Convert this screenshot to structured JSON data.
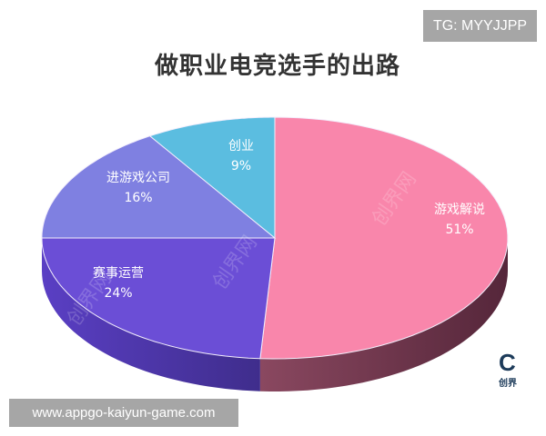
{
  "badge": "TG: MYYJJPP",
  "website": "www.appgo-kaiyun-game.com",
  "logo": {
    "text": "创界",
    "letter": "C"
  },
  "watermark": "创界网",
  "chart_data": {
    "type": "pie",
    "style": "3d",
    "title": "做职业电竞选手的出路",
    "legend": "none",
    "slices": [
      {
        "label": "游戏解说",
        "value": 51,
        "value_label": "51%",
        "color": "#F986AB",
        "side": "#6a3143"
      },
      {
        "label": "赛事运营",
        "value": 24,
        "value_label": "24%",
        "color": "#6B4ED6",
        "side": "#4a34a6"
      },
      {
        "label": "进游戏公司",
        "value": 16,
        "value_label": "16%",
        "color": "#7F80E1",
        "side": "#5a5ab8"
      },
      {
        "label": "创业",
        "value": 9,
        "value_label": "9%",
        "color": "#5BBDE0",
        "side": "#3b8fb0"
      }
    ]
  }
}
